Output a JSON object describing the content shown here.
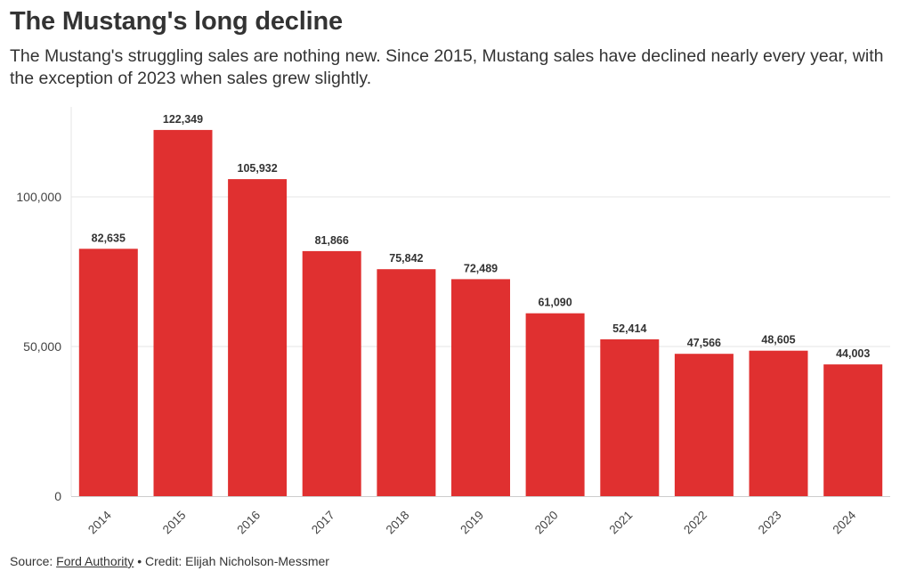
{
  "header": {
    "title": "The Mustang's long decline",
    "subtitle": "The Mustang's struggling sales are nothing new. Since 2015, Mustang sales have declined nearly every year, with the exception of 2023 when sales grew slightly."
  },
  "footer": {
    "source_label": "Source:",
    "source_link": "Ford Authority",
    "separator": "•",
    "credit": "Credit: Elijah Nicholson-Messmer"
  },
  "colors": {
    "bar": "#e03030",
    "text": "#333333",
    "axis_text": "#444444",
    "grid": "#e6e6e6"
  },
  "chart_data": {
    "type": "bar",
    "categories": [
      "2014",
      "2015",
      "2016",
      "2017",
      "2018",
      "2019",
      "2020",
      "2021",
      "2022",
      "2023",
      "2024"
    ],
    "values": [
      82635,
      122349,
      105932,
      81866,
      75842,
      72489,
      61090,
      52414,
      47566,
      48605,
      44003
    ],
    "value_labels": [
      "82,635",
      "122,349",
      "105,932",
      "81,866",
      "75,842",
      "72,489",
      "61,090",
      "52,414",
      "47,566",
      "48,605",
      "44,003"
    ],
    "yticks": [
      0,
      50000,
      100000
    ],
    "ytick_labels": [
      "0",
      "50,000",
      "100,000"
    ],
    "ylim": [
      0,
      130000
    ],
    "grid": true,
    "xtick_rotation": "diagonal"
  }
}
